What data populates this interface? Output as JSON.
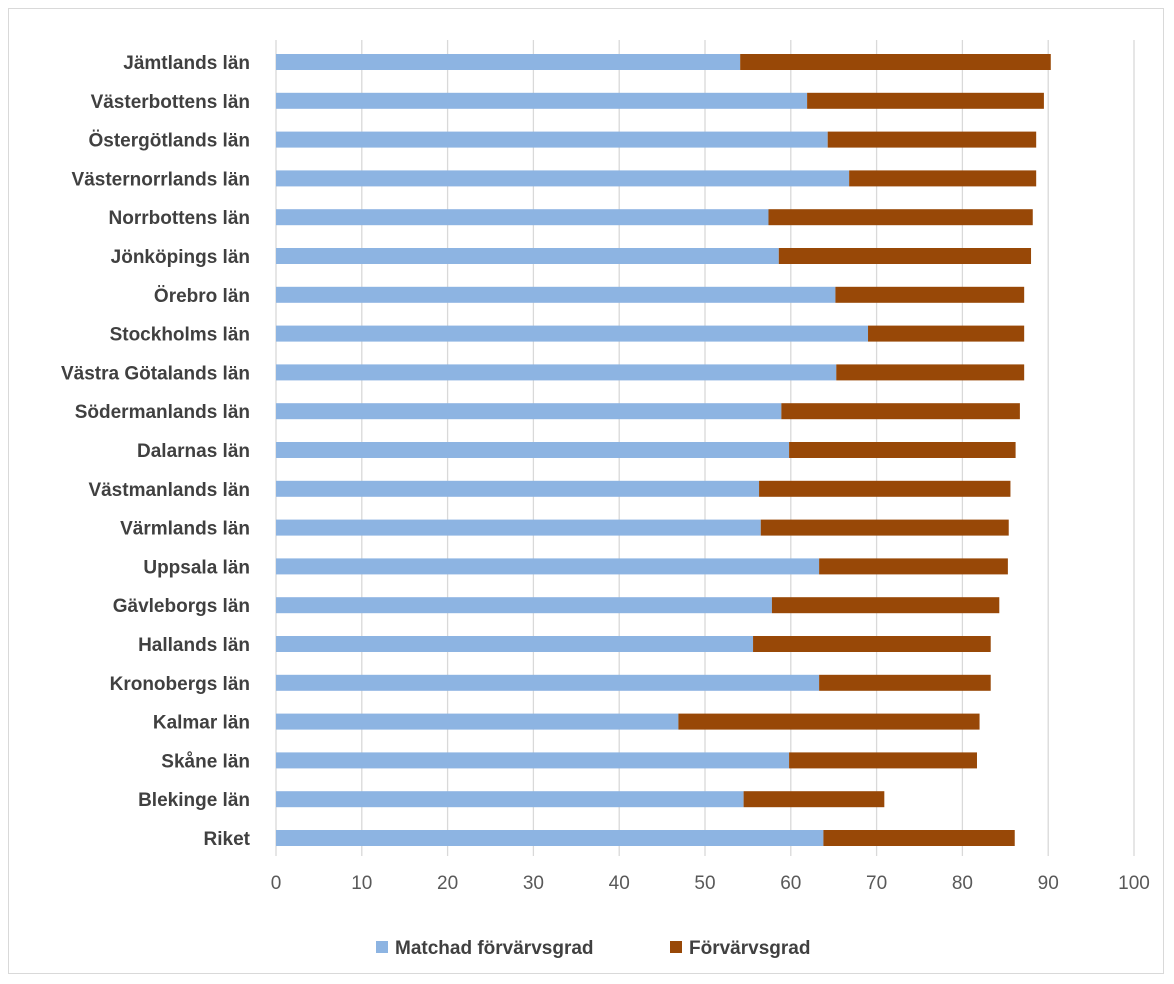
{
  "chart_data": {
    "type": "bar",
    "orientation": "horizontal",
    "stacked": true,
    "categories": [
      "Jämtlands län",
      "Västerbottens län",
      "Östergötlands län",
      "Västernorrlands län",
      "Norrbottens län",
      "Jönköpings län",
      "Örebro län",
      "Stockholms län",
      "Västra Götalands län",
      "Södermanlands län",
      "Dalarnas län",
      "Västmanlands län",
      "Värmlands län",
      "Uppsala län",
      "Gävleborgs län",
      "Hallands län",
      "Kronobergs län",
      "Kalmar län",
      "Skåne län",
      "Blekinge län",
      "Riket"
    ],
    "series": [
      {
        "name": "Matchad förvärvsgrad",
        "color": "#8db4e2",
        "values": [
          54.1,
          61.9,
          64.3,
          66.8,
          57.4,
          58.6,
          65.2,
          69.0,
          65.3,
          58.9,
          59.8,
          56.3,
          56.5,
          63.3,
          57.8,
          55.6,
          63.3,
          46.9,
          59.8,
          54.5,
          63.8
        ]
      },
      {
        "name": "Förvärvsgrad",
        "color": "#984807",
        "values": [
          36.2,
          27.6,
          24.3,
          21.8,
          30.8,
          29.4,
          22.0,
          18.2,
          21.9,
          27.8,
          26.4,
          29.3,
          28.9,
          22.0,
          26.5,
          27.7,
          20.0,
          35.1,
          21.9,
          16.4,
          22.3
        ]
      }
    ],
    "xlim": [
      0,
      100
    ],
    "xticks": [
      "0",
      "10",
      "20",
      "30",
      "40",
      "50",
      "60",
      "70",
      "80",
      "90",
      "100"
    ],
    "grid": true,
    "legend_position": "bottom",
    "gridline_color": "#d9d9d9"
  }
}
